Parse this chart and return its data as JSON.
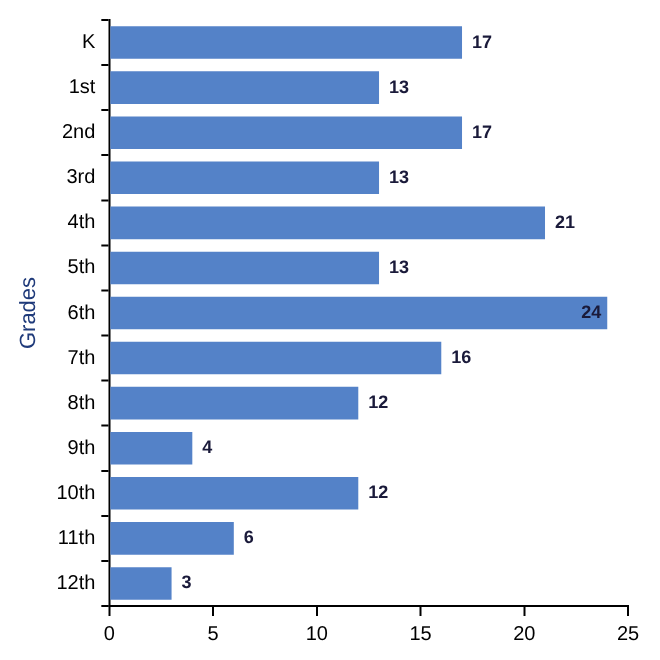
{
  "chart_data": {
    "type": "bar",
    "orientation": "horizontal",
    "ylabel": "Grades",
    "categories": [
      "K",
      "1st",
      "2nd",
      "3rd",
      "4th",
      "5th",
      "6th",
      "7th",
      "8th",
      "9th",
      "10th",
      "11th",
      "12th"
    ],
    "values": [
      17,
      13,
      17,
      13,
      21,
      13,
      24,
      16,
      12,
      4,
      12,
      6,
      3
    ],
    "color": "#5482c8",
    "xlim": [
      0,
      25
    ],
    "xticks": [
      0,
      5,
      10,
      15,
      20,
      25
    ],
    "grid": false,
    "legend": false,
    "data_labels": true
  }
}
